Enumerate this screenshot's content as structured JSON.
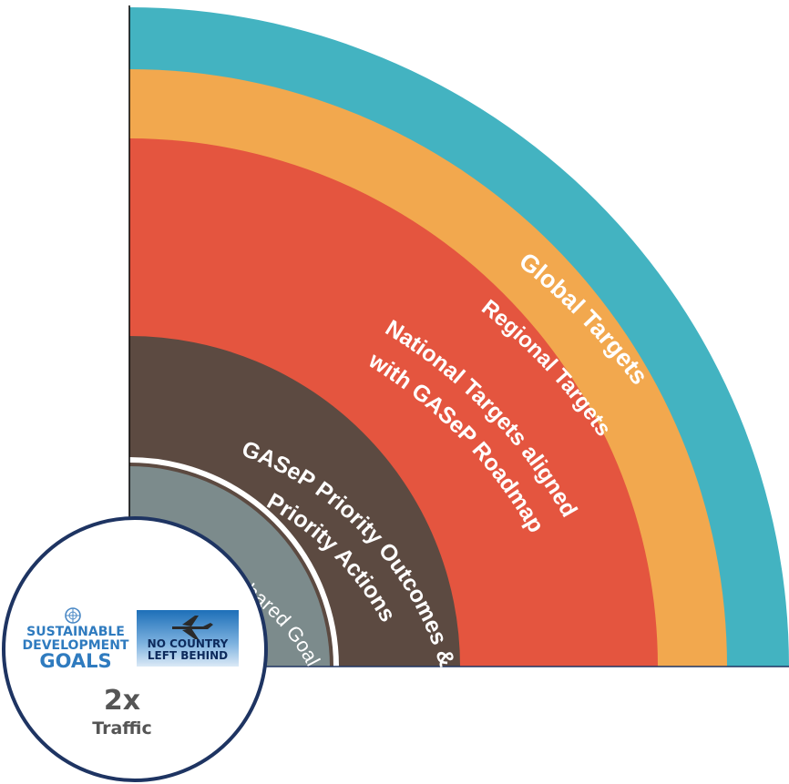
{
  "rings": [
    {
      "key": "global",
      "label": "Global Targets",
      "color": "#43b3c1"
    },
    {
      "key": "regional",
      "label": "Regional Targets",
      "color": "#f2a84e"
    },
    {
      "key": "national",
      "label_line1": "National Targets aligned",
      "label_line2": "with GASeP Roadmap",
      "color": "#e4553f"
    },
    {
      "key": "priority",
      "label_line1": "GASeP Priority Outcomes &",
      "label_line2": "Priority Actions",
      "color": "#5c4a41"
    },
    {
      "key": "shared",
      "label": "Shared Goal",
      "color": "#7c8b8c"
    }
  ],
  "badge": {
    "sdg": {
      "line1": "SUSTAINABLE",
      "line2": "DEVELOPMENT",
      "line3": "GOALS"
    },
    "nclb": {
      "line1": "NO COUNTRY",
      "line2": "LEFT BEHIND"
    },
    "traffic_multiplier": "2x",
    "traffic_label": "Traffic",
    "border_color": "#1e3462"
  }
}
